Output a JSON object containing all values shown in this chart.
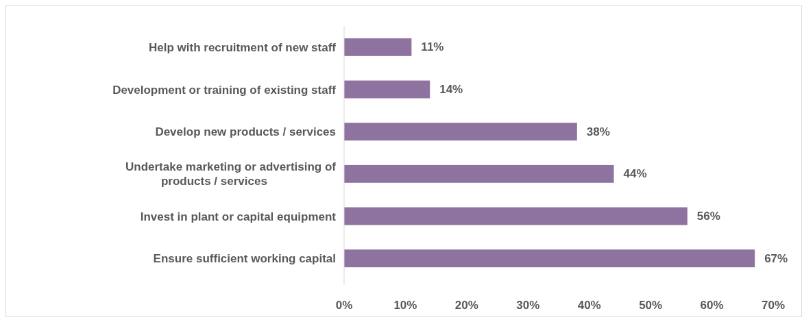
{
  "chart_data": {
    "type": "bar",
    "orientation": "horizontal",
    "categories": [
      "Help with recruitment of new staff",
      "Development or training of existing staff",
      "Develop new products / services",
      "Undertake marketing or advertising of products / services",
      "Invest in plant or capital equipment",
      "Ensure sufficient working capital"
    ],
    "values": [
      11,
      14,
      38,
      44,
      56,
      67
    ],
    "value_labels": [
      "11%",
      "14%",
      "38%",
      "44%",
      "56%",
      "67%"
    ],
    "color": "#8e72a0",
    "xlim": [
      0,
      70
    ],
    "xticks": [
      {
        "value": 0,
        "label": "0%"
      },
      {
        "value": 10,
        "label": "10%"
      },
      {
        "value": 20,
        "label": "20%"
      },
      {
        "value": 30,
        "label": "30%"
      },
      {
        "value": 40,
        "label": "40%"
      },
      {
        "value": 50,
        "label": "50%"
      },
      {
        "value": 60,
        "label": "60%"
      },
      {
        "value": 70,
        "label": "70%"
      }
    ],
    "grid": false
  }
}
